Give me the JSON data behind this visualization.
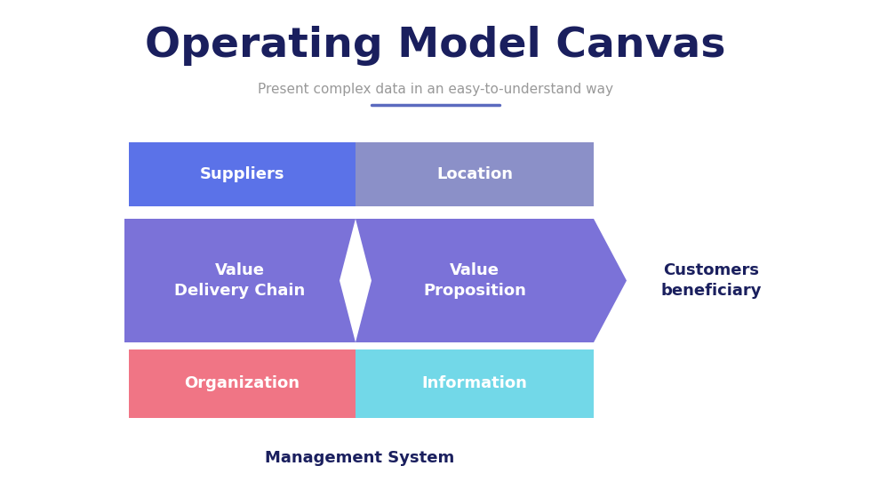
{
  "title": "Operating Model Canvas",
  "subtitle": "Present complex data in an easy-to-understand way",
  "bg_color": "#ffffff",
  "title_color": "#1a1f5e",
  "subtitle_color": "#999999",
  "accent_line_color": "#5b6abf",
  "management_label": "Management System",
  "customers_label": "Customers\nbeneficiary",
  "customers_color": "#1a1f5e",
  "suppliers_color": "#5b72e8",
  "location_color": "#8b90c8",
  "vdc_color": "#7b72d8",
  "vp_color": "#7b72d8",
  "org_color": "#f07585",
  "info_color": "#72d8e8",
  "label_color": "#ffffff",
  "title_fontsize": 34,
  "subtitle_fontsize": 11,
  "label_fontsize": 13
}
